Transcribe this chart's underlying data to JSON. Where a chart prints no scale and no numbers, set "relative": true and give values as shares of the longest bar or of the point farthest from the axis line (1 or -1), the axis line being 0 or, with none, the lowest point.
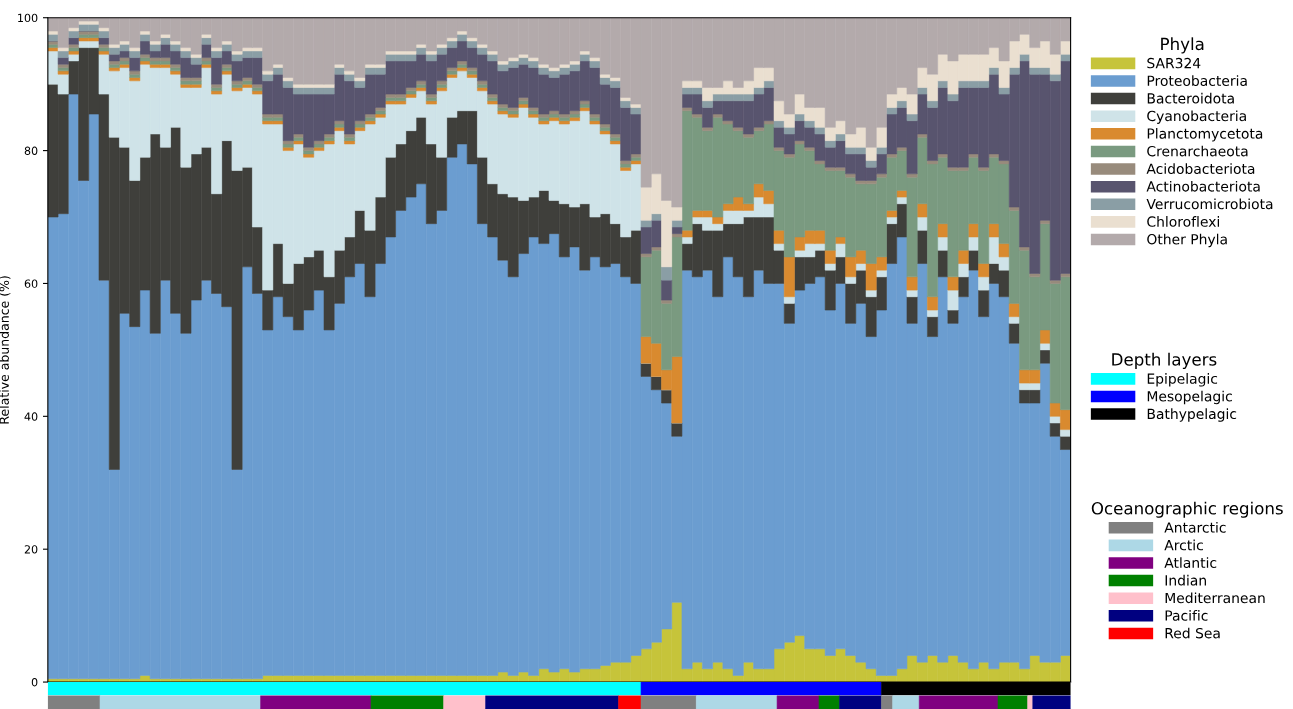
{
  "chart_data": [
    {
      "type": "bar",
      "stacked": true,
      "ylabel": "Relative abundance (%)",
      "legend_title": "Phyla",
      "legend": "right",
      "grid": false,
      "ylim": [
        0,
        100
      ],
      "yticks": [
        0,
        20,
        40,
        60,
        80,
        100
      ],
      "categories": [
        null,
        null,
        null,
        null,
        null,
        null,
        null,
        null,
        null,
        null,
        null,
        null,
        null,
        null,
        null,
        null,
        null,
        null,
        null,
        null,
        null,
        null,
        null,
        null,
        null,
        null,
        null,
        null,
        null,
        null,
        null,
        null,
        null,
        null,
        null,
        null,
        null,
        null,
        null,
        null,
        null,
        null,
        null,
        null,
        null,
        null,
        null,
        null,
        null,
        null,
        null,
        null,
        null,
        null,
        null,
        null,
        null,
        null,
        null,
        null,
        null,
        null,
        null,
        null,
        null,
        null,
        null,
        null,
        null,
        null,
        null,
        null,
        null,
        null,
        null,
        null,
        null,
        null,
        null,
        null,
        null,
        null,
        null,
        null,
        null,
        null,
        null,
        null,
        null,
        null,
        null,
        null,
        null,
        null,
        null,
        null,
        null,
        null,
        null,
        null
      ],
      "series": [
        {
          "name": "SAR324",
          "color": "#c6c43a",
          "values": [
            0.5,
            0.5,
            0.5,
            0.5,
            0.5,
            0.5,
            0.5,
            0.5,
            0.5,
            1,
            0.5,
            0.5,
            0.5,
            0.5,
            0.5,
            0.5,
            0.5,
            0.5,
            0.5,
            0.5,
            0.5,
            1,
            1,
            1,
            1,
            1,
            1,
            1,
            1,
            1,
            1,
            1,
            1,
            1,
            1,
            1,
            1,
            1,
            1,
            1,
            1,
            1,
            1,
            1,
            1.5,
            1,
            1.5,
            1,
            2,
            1.5,
            2,
            1.5,
            2,
            2,
            2.5,
            3,
            3,
            4,
            5,
            6,
            8,
            12,
            2,
            3,
            2,
            3,
            2,
            1,
            3,
            2,
            2,
            5,
            6,
            7,
            5,
            5,
            4,
            5,
            4,
            3,
            2,
            1,
            1,
            2,
            4,
            3,
            4,
            3,
            4,
            3,
            2,
            3,
            2,
            3,
            3,
            2,
            4,
            3,
            3,
            4
          ]
        },
        {
          "name": "Proteobacteria",
          "color": "#6b9dd0",
          "values": [
            69.5,
            70,
            88,
            75,
            85,
            60,
            31.5,
            55,
            53,
            58,
            52,
            60,
            55,
            52,
            57,
            60,
            58,
            56,
            31.5,
            62,
            58,
            52,
            57,
            54,
            52,
            55,
            58,
            52,
            56,
            60,
            62,
            57,
            62,
            66,
            70,
            72,
            74,
            68,
            70,
            78,
            80,
            77,
            68,
            66,
            62,
            60,
            63,
            66,
            64,
            66,
            62,
            64,
            60,
            62,
            60,
            60,
            58,
            56,
            41,
            38,
            34,
            25,
            60,
            58,
            60,
            55,
            62,
            60,
            55,
            60,
            58,
            55,
            48,
            52,
            55,
            56,
            52,
            55,
            50,
            54,
            50,
            55,
            62,
            65,
            50,
            60,
            48,
            58,
            50,
            55,
            60,
            52,
            58,
            55,
            48,
            40,
            38,
            45,
            34,
            31
          ]
        },
        {
          "name": "Bacteroidota",
          "color": "#3f3f3b",
          "values": [
            20,
            18,
            5,
            20,
            10,
            28,
            50,
            25,
            22,
            20,
            30,
            20,
            28,
            25,
            22,
            20,
            15,
            25,
            45,
            15,
            10,
            6,
            8,
            5,
            10,
            8,
            6,
            8,
            8,
            6,
            8,
            10,
            10,
            12,
            10,
            10,
            10,
            12,
            8,
            6,
            5,
            8,
            10,
            8,
            10,
            12,
            8,
            6,
            8,
            5,
            8,
            6,
            10,
            6,
            8,
            6,
            6,
            8,
            2,
            2,
            2,
            2,
            4,
            8,
            6,
            10,
            5,
            8,
            12,
            8,
            10,
            5,
            3,
            5,
            4,
            4,
            6,
            4,
            6,
            5,
            6,
            5,
            6,
            5,
            4,
            5,
            3,
            4,
            2,
            3,
            3,
            4,
            3,
            4,
            3,
            2,
            2,
            2,
            2,
            2
          ]
        },
        {
          "name": "Cyanobacteria",
          "color": "#cfe3e8",
          "values": [
            5,
            3,
            1,
            1,
            1,
            6,
            10,
            12,
            15,
            14,
            10,
            12,
            8,
            12,
            10,
            12,
            15,
            10,
            12,
            12,
            20,
            25,
            18,
            20,
            18,
            15,
            15,
            20,
            18,
            14,
            12,
            16,
            12,
            8,
            6,
            5,
            4,
            6,
            10,
            6,
            6,
            5,
            10,
            12,
            12,
            12,
            14,
            12,
            10,
            12,
            12,
            13,
            14,
            14,
            12,
            12,
            10,
            10,
            0,
            0,
            0,
            0,
            1,
            1,
            2,
            1,
            2,
            2,
            1,
            3,
            2,
            1,
            1,
            1,
            2,
            1,
            1,
            2,
            1,
            1,
            1,
            1,
            1,
            1,
            1,
            2,
            1,
            2,
            3,
            2,
            2,
            2,
            4,
            2,
            1,
            1,
            1,
            1,
            1,
            1
          ]
        },
        {
          "name": "Planctomycetota",
          "color": "#d98a2f",
          "values": [
            0.5,
            0.5,
            0.5,
            0.5,
            0.5,
            0.5,
            0.5,
            0.5,
            0.5,
            0.5,
            0.5,
            0.5,
            0.5,
            0.5,
            0.5,
            0.5,
            0.5,
            0.5,
            0.5,
            0.5,
            0.5,
            0.5,
            0.5,
            0.5,
            0.5,
            0.5,
            0.5,
            0.5,
            0.5,
            0.5,
            0.5,
            0.5,
            0.5,
            0.5,
            0.5,
            0.5,
            0.5,
            0.5,
            0.5,
            0.5,
            0.5,
            0.5,
            0.5,
            0.5,
            0.5,
            0.5,
            0.5,
            0.5,
            0.5,
            0.5,
            0.5,
            0.5,
            0.5,
            0.5,
            0.5,
            0.5,
            0.5,
            0.5,
            4,
            5,
            3,
            10,
            1,
            1,
            1,
            1,
            1,
            2,
            1,
            2,
            2,
            2,
            6,
            2,
            2,
            2,
            2,
            1,
            3,
            2,
            4,
            2,
            1,
            1,
            2,
            2,
            2,
            2,
            2,
            2,
            2,
            2,
            2,
            2,
            2,
            2,
            2,
            2,
            2,
            3
          ]
        },
        {
          "name": "Crenarchaeota",
          "color": "#7a9a80",
          "values": [
            0.5,
            0.5,
            0.5,
            0.5,
            0.5,
            0.5,
            0.5,
            0.5,
            0.5,
            0.5,
            0.5,
            0.5,
            0.5,
            0.5,
            0.5,
            0.5,
            0.5,
            0.5,
            0.5,
            0.5,
            0.5,
            0.5,
            0.5,
            0.5,
            0.5,
            0.5,
            0.5,
            0.5,
            0.5,
            0.5,
            0.5,
            0.5,
            0.5,
            0.5,
            0.5,
            0.5,
            0.5,
            0.5,
            0.5,
            0.5,
            0.5,
            0.5,
            0.5,
            0.5,
            0.5,
            0.5,
            0.5,
            0.5,
            0.5,
            0.5,
            0.5,
            0.5,
            0.5,
            0.5,
            0.5,
            0.5,
            0.5,
            0.5,
            12,
            14,
            10,
            18,
            18,
            14,
            12,
            15,
            12,
            10,
            10,
            8,
            10,
            12,
            15,
            14,
            12,
            10,
            12,
            10,
            12,
            10,
            12,
            12,
            8,
            6,
            15,
            10,
            20,
            10,
            16,
            12,
            10,
            14,
            10,
            12,
            14,
            18,
            14,
            16,
            18,
            20
          ]
        },
        {
          "name": "Acidobacteriota",
          "color": "#988b7c",
          "values": [
            0.5,
            0.5,
            0.5,
            0.5,
            0.5,
            0.5,
            0.5,
            0.5,
            0.5,
            0.5,
            0.5,
            0.5,
            0.5,
            0.5,
            0.5,
            0.5,
            0.5,
            0.5,
            0.5,
            0.5,
            0.5,
            0.5,
            0.5,
            0.5,
            0.5,
            0.5,
            0.5,
            0.5,
            0.5,
            0.5,
            0.5,
            0.5,
            0.5,
            0.5,
            0.5,
            0.5,
            0.5,
            0.5,
            0.5,
            0.5,
            0.5,
            0.5,
            0.5,
            0.5,
            0.5,
            0.5,
            0.5,
            0.5,
            0.5,
            0.5,
            0.5,
            0.5,
            0.5,
            0.5,
            0.5,
            0.5,
            0.5,
            0.5,
            0.5,
            0.5,
            0.5,
            0.5,
            0.5,
            0.5,
            0.5,
            0.5,
            0.5,
            0.5,
            0.5,
            0.5,
            0.5,
            0.5,
            0.5,
            0.5,
            0.5,
            0.5,
            0.5,
            0.5,
            0.5,
            0.5,
            0.5,
            0.5,
            0.5,
            0.5,
            0.5,
            0.5,
            0.5,
            0.5,
            0.5,
            0.5,
            0.5,
            0.5,
            0.5,
            0.5,
            0.5,
            0.5,
            0.5,
            0.5,
            0.5,
            0.5
          ]
        },
        {
          "name": "Actinobacteriota",
          "color": "#58546e",
          "values": [
            0,
            1,
            1,
            0,
            0,
            1,
            1,
            1,
            2,
            2,
            1,
            2,
            2,
            3,
            2,
            2,
            4,
            2,
            3,
            3,
            4,
            5,
            6,
            8,
            6,
            8,
            7,
            6,
            7,
            8,
            5,
            6,
            5,
            5,
            5,
            4,
            4,
            5,
            4,
            3,
            3,
            3,
            4,
            5,
            5,
            6,
            5,
            6,
            6,
            5,
            6,
            6,
            6,
            7,
            6,
            7,
            8,
            6,
            4,
            4,
            3,
            1,
            2,
            3,
            3,
            2,
            3,
            4,
            5,
            5,
            5,
            3,
            3,
            3,
            3,
            4,
            3,
            4,
            3,
            4,
            2,
            3,
            6,
            6,
            8,
            6,
            8,
            10,
            10,
            12,
            10,
            12,
            12,
            10,
            20,
            28,
            30,
            22,
            30,
            32
          ]
        },
        {
          "name": "Verrucomicrobiota",
          "color": "#8a9ea5",
          "values": [
            1,
            1,
            1,
            1,
            1,
            1,
            1,
            1,
            1,
            1,
            1,
            1,
            1,
            1,
            1,
            1,
            1,
            1,
            1,
            1,
            1,
            1,
            1,
            1,
            1,
            1,
            1,
            1,
            1,
            1,
            1,
            1,
            1,
            1,
            1,
            1,
            1,
            1,
            1,
            1,
            1,
            1,
            1,
            1,
            1,
            1,
            1,
            1,
            1,
            1,
            1,
            1,
            1,
            1,
            1,
            1,
            1,
            1,
            1,
            1,
            2,
            1,
            1,
            1,
            1,
            1,
            1,
            1,
            1,
            1,
            1,
            1,
            1,
            1,
            1,
            1,
            1,
            1,
            1,
            1,
            1,
            1,
            1,
            1,
            1,
            1,
            1,
            1,
            1,
            1,
            1,
            1,
            1,
            1,
            1,
            1,
            1,
            1,
            1,
            1
          ]
        },
        {
          "name": "Chloroflexi",
          "color": "#eadfd0",
          "values": [
            0.5,
            0.5,
            0.5,
            0.5,
            0.5,
            0.5,
            0.5,
            0.5,
            0.5,
            0.5,
            0.5,
            0.5,
            0.5,
            0.5,
            0.5,
            0.5,
            0.5,
            0.5,
            0.5,
            0.5,
            0.5,
            0.5,
            0.5,
            0.5,
            0.5,
            0.5,
            0.5,
            0.5,
            0.5,
            0.5,
            0.5,
            0.5,
            0.5,
            0.5,
            0.5,
            0.5,
            0.5,
            0.5,
            0.5,
            0.5,
            0.5,
            0.5,
            0.5,
            0.5,
            0.5,
            0.5,
            0.5,
            0.5,
            0.5,
            0.5,
            0.5,
            0.5,
            0.5,
            0.5,
            0.5,
            0.5,
            0.5,
            0.5,
            5,
            6,
            10,
            2,
            1,
            1,
            2,
            1,
            2,
            1,
            2,
            3,
            2,
            3,
            2,
            3,
            2,
            3,
            2,
            2,
            2,
            3,
            2,
            3,
            2,
            2,
            3,
            3,
            4,
            4,
            5,
            4,
            4,
            4,
            3,
            4,
            4,
            3,
            3,
            4,
            3,
            2
          ]
        },
        {
          "name": "Other Phyla",
          "color": "#b3aaab",
          "values": [
            2,
            4.5,
            1.5,
            0.5,
            0.5,
            1.5,
            4,
            3.5,
            4.5,
            2,
            3.5,
            2.5,
            3.5,
            4.5,
            5.5,
            2.5,
            4.5,
            3.5,
            5,
            4.5,
            4.5,
            8,
            7,
            9,
            10,
            10,
            10,
            10,
            7,
            8,
            9,
            7,
            7,
            5,
            5,
            5,
            4,
            5,
            4,
            3,
            2,
            3,
            4,
            5,
            6.5,
            6,
            5.5,
            6,
            7,
            7.5,
            7,
            6.5,
            5,
            6,
            8.5,
            9,
            12,
            13,
            25.5,
            23.5,
            27.5,
            28.5,
            9.5,
            9.5,
            10.5,
            10.5,
            9.5,
            10.5,
            9.5,
            7.5,
            7.5,
            12.5,
            14.5,
            11.5,
            13.5,
            13.5,
            16.5,
            15.5,
            17.5,
            16.5,
            19.5,
            16.5,
            11.5,
            10.5,
            11.5,
            7.5,
            8.5,
            5.5,
            6.5,
            5.5,
            5.5,
            5.5,
            4.5,
            6.5,
            3.5,
            2.5,
            4.5,
            3.5,
            5.5,
            3.5
          ]
        }
      ]
    },
    {
      "type": "bar",
      "orientation": "horizontal",
      "stacked": true,
      "relative": true,
      "categories": [
        null
      ],
      "legend_title": "Depth layers",
      "legend": "right",
      "series": [
        {
          "name": "Epipelagic",
          "color": "#00ffff",
          "values": [
            0.58
          ]
        },
        {
          "name": "Mesopelagic",
          "color": "#0000ff",
          "values": [
            0.235
          ]
        },
        {
          "name": "Bathypelagic",
          "color": "#000000",
          "values": [
            0.185
          ]
        }
      ]
    },
    {
      "type": "bar",
      "orientation": "horizontal",
      "stacked": true,
      "relative": true,
      "categories": [
        null
      ],
      "legend_title": "Oceanographic regions",
      "legend": "right",
      "series": [
        {
          "name": "Antarctic",
          "color": "#808080",
          "values": [
            0.051
          ]
        },
        {
          "name": "Arctic",
          "color": "#add8e6",
          "values": [
            0.157
          ]
        },
        {
          "name": "Atlantic",
          "color": "#800080",
          "values": [
            0.108
          ]
        },
        {
          "name": "Indian",
          "color": "#008000",
          "values": [
            0.071
          ]
        },
        {
          "name": "Mediterranean",
          "color": "#ffc0cb",
          "values": [
            0.041
          ]
        },
        {
          "name": "Pacific",
          "color": "#000080",
          "values": [
            0.13
          ]
        },
        {
          "name": "Red Sea",
          "color": "#ff0000",
          "values": [
            0.022
          ]
        },
        {
          "color": "#808080",
          "values": [
            0.054
          ]
        },
        {
          "color": "#add8e6",
          "values": [
            0.079
          ]
        },
        {
          "color": "#800080",
          "values": [
            0.041
          ]
        },
        {
          "color": "#008000",
          "values": [
            0.02
          ]
        },
        {
          "color": "#000080",
          "values": [
            0.041
          ]
        },
        {
          "color": "#808080",
          "values": [
            0.011
          ]
        },
        {
          "color": "#add8e6",
          "values": [
            0.026
          ]
        },
        {
          "color": "#800080",
          "values": [
            0.077
          ]
        },
        {
          "color": "#008000",
          "values": [
            0.029
          ]
        },
        {
          "color": "#ffc0cb",
          "values": [
            0.005
          ]
        },
        {
          "color": "#000080",
          "values": [
            0.037
          ]
        }
      ]
    }
  ]
}
